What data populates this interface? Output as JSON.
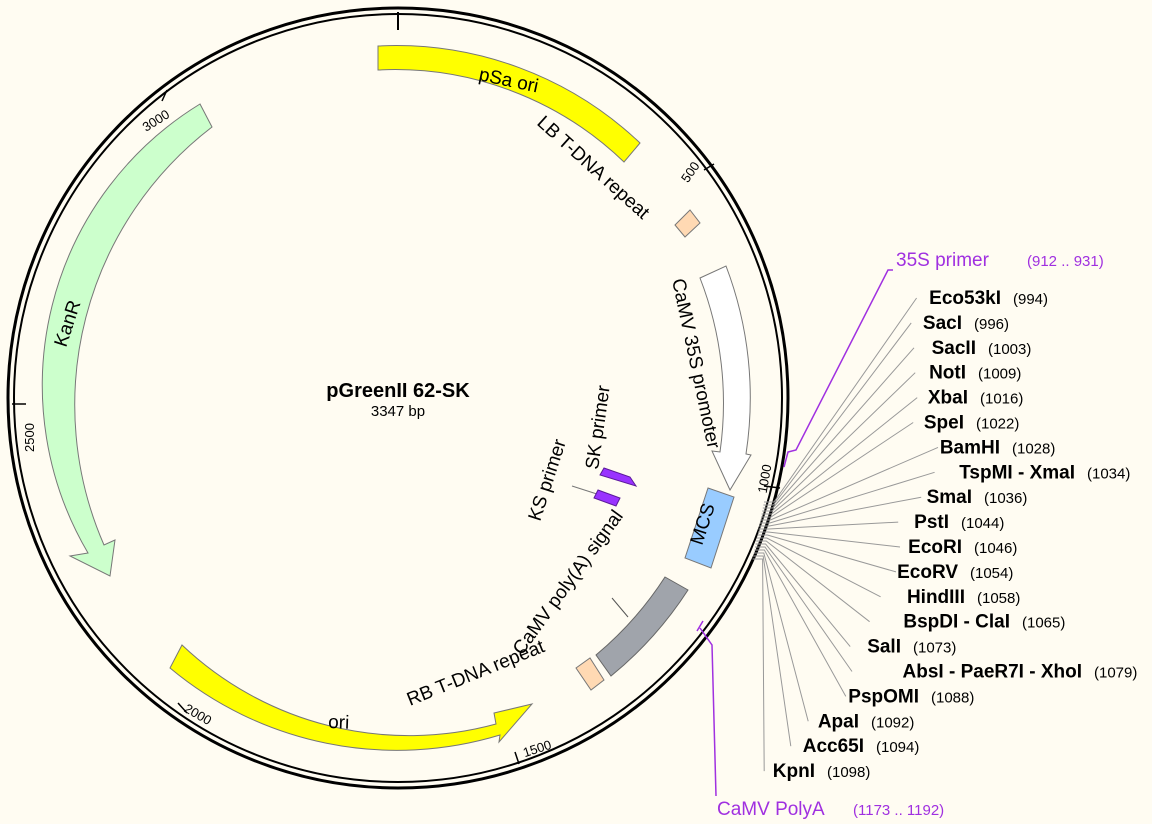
{
  "plasmid": {
    "name": "pGreenII 62-SK",
    "length": "3347 bp"
  },
  "ticks": [
    "500",
    "1000",
    "1500",
    "2000",
    "2500",
    "3000"
  ],
  "features": {
    "psa_ori": "pSa ori",
    "lb": "LB T-DNA repeat",
    "camv35s": "CaMV 35S promoter",
    "mcs": "MCS",
    "polyA_signal": "CaMV poly(A) signal",
    "rb": "RB T-DNA repeat",
    "ori": "ori",
    "kanr": "KanR",
    "ks_primer": "KS primer",
    "sk_primer": "SK primer"
  },
  "primers": {
    "s35": {
      "name": "35S primer",
      "pos": "(912 .. 931)"
    },
    "polyA": {
      "name": "CaMV PolyA",
      "pos": "(1173 .. 1192)"
    }
  },
  "sites": [
    {
      "name": "Eco53kI",
      "pos": "(994)"
    },
    {
      "name": "SacI",
      "pos": "(996)"
    },
    {
      "name": "SacII",
      "pos": "(1003)"
    },
    {
      "name": "NotI",
      "pos": "(1009)"
    },
    {
      "name": "XbaI",
      "pos": "(1016)"
    },
    {
      "name": "SpeI",
      "pos": "(1022)"
    },
    {
      "name": "BamHI",
      "pos": "(1028)"
    },
    {
      "name": "TspMI - XmaI",
      "pos": "(1034)"
    },
    {
      "name": "SmaI",
      "pos": "(1036)"
    },
    {
      "name": "PstI",
      "pos": "(1044)"
    },
    {
      "name": "EcoRI",
      "pos": "(1046)"
    },
    {
      "name": "EcoRV",
      "pos": "(1054)"
    },
    {
      "name": "HindIII",
      "pos": "(1058)"
    },
    {
      "name": "BspDI - ClaI",
      "pos": "(1065)"
    },
    {
      "name": "SalI",
      "pos": "(1073)"
    },
    {
      "name": "AbsI - PaeR7I - XhoI",
      "pos": "(1079)"
    },
    {
      "name": "PspOMI",
      "pos": "(1088)"
    },
    {
      "name": "ApaI",
      "pos": "(1092)"
    },
    {
      "name": "Acc65I",
      "pos": "(1094)"
    },
    {
      "name": "KpnI",
      "pos": "(1098)"
    }
  ],
  "colors": {
    "background": "#fffcf2",
    "yellow_feature": "#ffff00",
    "kanr": "#ccffcc",
    "promoter": "#ffffff",
    "mcs": "#99ccff",
    "terminator": "#a0a4ab",
    "repeat": "#ffd9b3",
    "primer": "#a030e0"
  }
}
